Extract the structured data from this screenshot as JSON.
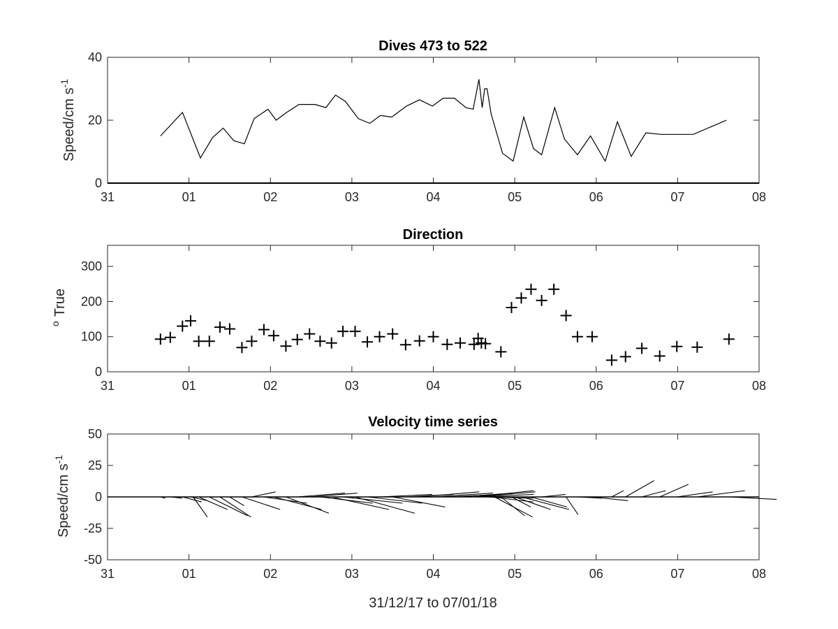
{
  "chart_data": [
    {
      "type": "line",
      "title": "Dives 473 to 522",
      "ylabel": "Speed/cm s",
      "ylabel_sup": "-1",
      "xlabel": "",
      "xlim": [
        0,
        8
      ],
      "ylim": [
        0,
        40
      ],
      "yticks": [
        "0",
        "20",
        "40"
      ],
      "xticks": [
        "31",
        "01",
        "02",
        "03",
        "04",
        "05",
        "06",
        "07",
        "08"
      ],
      "grid": false,
      "series": [
        {
          "x": [
            0.65,
            0.92,
            1.14,
            1.29,
            1.42,
            1.55,
            1.68,
            1.8,
            1.97,
            2.07,
            2.2,
            2.35,
            2.55,
            2.68,
            2.8,
            2.92,
            3.08,
            3.22,
            3.35,
            3.49,
            3.67,
            3.83,
            3.99,
            4.12,
            4.26,
            4.4,
            4.49,
            4.56,
            4.6,
            4.63,
            4.66,
            4.71,
            4.85,
            4.98,
            5.11,
            5.23,
            5.33,
            5.49,
            5.61,
            5.77,
            5.93,
            6.11,
            6.26,
            6.43,
            6.61,
            6.8,
            6.91,
            7.19,
            7.6
          ],
          "y": [
            15,
            22.5,
            8,
            14.5,
            17.5,
            13.5,
            12.5,
            20.5,
            23.5,
            20,
            22.5,
            25,
            25,
            24,
            28,
            26,
            20.5,
            19,
            21.5,
            21,
            24.5,
            26.5,
            24.5,
            27,
            27,
            24,
            23.5,
            33,
            24,
            30,
            30,
            22,
            9.5,
            7,
            21,
            11,
            9,
            24,
            14,
            9,
            15,
            7,
            19.5,
            8.5,
            16,
            15.5,
            15.5,
            15.5,
            20
          ]
        }
      ]
    },
    {
      "type": "scatter",
      "title": "Direction",
      "ylabel": "True",
      "ylabel_sup": "o",
      "xlabel": "",
      "xlim": [
        0,
        8
      ],
      "ylim": [
        0,
        360
      ],
      "yticks": [
        "0",
        "100",
        "200",
        "300"
      ],
      "xticks": [
        "31",
        "01",
        "02",
        "03",
        "04",
        "05",
        "06",
        "07",
        "08"
      ],
      "grid": false,
      "marker": "+",
      "series": [
        {
          "x": [
            0.65,
            0.77,
            0.92,
            1.02,
            1.12,
            1.25,
            1.38,
            1.5,
            1.65,
            1.77,
            1.92,
            2.04,
            2.19,
            2.33,
            2.48,
            2.61,
            2.75,
            2.89,
            3.04,
            3.19,
            3.34,
            3.5,
            3.66,
            3.83,
            4.0,
            4.17,
            4.33,
            4.5,
            4.55,
            4.59,
            4.64,
            4.83,
            4.96,
            5.08,
            5.2,
            5.33,
            5.48,
            5.63,
            5.77,
            5.95,
            6.19,
            6.36,
            6.56,
            6.78,
            6.99,
            7.24,
            7.63
          ],
          "y": [
            93,
            98,
            130,
            145,
            87,
            87,
            127,
            122,
            69,
            87,
            120,
            103,
            73,
            92,
            108,
            87,
            82,
            115,
            115,
            85,
            100,
            108,
            77,
            88,
            100,
            78,
            82,
            78,
            95,
            82,
            80,
            57,
            183,
            210,
            235,
            203,
            235,
            160,
            100,
            100,
            33,
            43,
            67,
            45,
            72,
            70,
            93
          ]
        }
      ]
    },
    {
      "type": "line",
      "title": "Velocity time series",
      "ylabel": "Speed/cm s",
      "ylabel_sup": "-1",
      "xlabel": "31/12/17 to 07/01/18",
      "xlim": [
        0,
        8
      ],
      "ylim": [
        -50,
        50
      ],
      "yticks": [
        "-50",
        "-25",
        "0",
        "25",
        "50"
      ],
      "xticks": [
        "31",
        "01",
        "02",
        "03",
        "04",
        "05",
        "06",
        "07",
        "08"
      ],
      "grid": false,
      "sticks": [
        {
          "x": 0.65,
          "u": 2,
          "v": -1
        },
        {
          "x": 0.77,
          "u": 5,
          "v": -1
        },
        {
          "x": 0.92,
          "u": 8,
          "v": -4
        },
        {
          "x": 1.02,
          "u": 7,
          "v": -3
        },
        {
          "x": 1.05,
          "u": 6,
          "v": -16
        },
        {
          "x": 1.12,
          "u": 12,
          "v": -10
        },
        {
          "x": 1.25,
          "u": 16,
          "v": -15
        },
        {
          "x": 1.38,
          "u": 13,
          "v": -16
        },
        {
          "x": 1.5,
          "u": 6,
          "v": -7
        },
        {
          "x": 1.65,
          "u": 16,
          "v": -10
        },
        {
          "x": 1.77,
          "u": 10,
          "v": 4
        },
        {
          "x": 1.92,
          "u": 18,
          "v": -5
        },
        {
          "x": 2.04,
          "u": 20,
          "v": -10
        },
        {
          "x": 2.19,
          "u": 18,
          "v": -13
        },
        {
          "x": 2.33,
          "u": 20,
          "v": 3
        },
        {
          "x": 2.48,
          "u": 20,
          "v": 3
        },
        {
          "x": 2.61,
          "u": 22,
          "v": -5
        },
        {
          "x": 2.75,
          "u": 24,
          "v": -10
        },
        {
          "x": 2.89,
          "u": 25,
          "v": -5
        },
        {
          "x": 3.04,
          "u": 25,
          "v": -13
        },
        {
          "x": 3.19,
          "u": 23,
          "v": -5
        },
        {
          "x": 3.34,
          "u": 22,
          "v": 2
        },
        {
          "x": 3.5,
          "u": 22,
          "v": -8
        },
        {
          "x": 3.66,
          "u": 20,
          "v": 2
        },
        {
          "x": 3.83,
          "u": 25,
          "v": 4
        },
        {
          "x": 4.0,
          "u": 25,
          "v": 3
        },
        {
          "x": 4.17,
          "u": 23,
          "v": 2
        },
        {
          "x": 4.33,
          "u": 22,
          "v": 3
        },
        {
          "x": 4.5,
          "u": 25,
          "v": 5
        },
        {
          "x": 4.55,
          "u": 24,
          "v": 4
        },
        {
          "x": 4.59,
          "u": 22,
          "v": 2
        },
        {
          "x": 4.64,
          "u": 20,
          "v": -1
        },
        {
          "x": 4.7,
          "u": 18,
          "v": -4
        },
        {
          "x": 4.75,
          "u": 16,
          "v": -16
        },
        {
          "x": 4.83,
          "u": 10,
          "v": -15
        },
        {
          "x": 4.96,
          "u": 8,
          "v": -8
        },
        {
          "x": 5.0,
          "u": 15,
          "v": -10
        },
        {
          "x": 5.08,
          "u": 20,
          "v": -10
        },
        {
          "x": 5.2,
          "u": 15,
          "v": -8
        },
        {
          "x": 5.33,
          "u": 10,
          "v": 2
        },
        {
          "x": 5.48,
          "u": 5,
          "v": 0
        },
        {
          "x": 5.63,
          "u": 5,
          "v": -14
        },
        {
          "x": 5.77,
          "u": 10,
          "v": -1
        },
        {
          "x": 5.95,
          "u": 15,
          "v": -3
        },
        {
          "x": 6.19,
          "u": 5,
          "v": 5
        },
        {
          "x": 6.36,
          "u": 12,
          "v": 13
        },
        {
          "x": 6.56,
          "u": 10,
          "v": 5
        },
        {
          "x": 6.78,
          "u": 12,
          "v": 10
        },
        {
          "x": 6.99,
          "u": 15,
          "v": 4
        },
        {
          "x": 7.24,
          "u": 20,
          "v": 5
        },
        {
          "x": 7.63,
          "u": 20,
          "v": -2
        }
      ]
    }
  ]
}
